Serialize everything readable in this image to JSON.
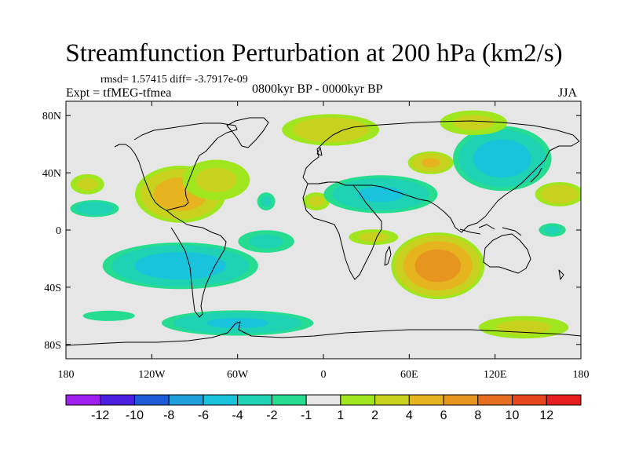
{
  "title": "Streamfunction Perturbation at 200 hPa (km2/s)",
  "stats": "rmsd= 1.57415 diff= -3.7917e-09",
  "experiment": "Expt = tfMEG-tfmea",
  "period": "0800kyr BP - 0000kyr BP",
  "season": "JJA",
  "colors": {
    "background_land": "#e6e6e6",
    "coastline": "#000000"
  },
  "map": {
    "projection": "cylindrical-equidistant",
    "lon_range": [
      -180,
      180
    ],
    "lat_range": [
      -90,
      90
    ],
    "lon_ticks": [
      {
        "value": -180,
        "label": "180"
      },
      {
        "value": -120,
        "label": "120W"
      },
      {
        "value": -60,
        "label": "60W"
      },
      {
        "value": 0,
        "label": "0"
      },
      {
        "value": 60,
        "label": "60E"
      },
      {
        "value": 120,
        "label": "120E"
      },
      {
        "value": 180,
        "label": "180"
      }
    ],
    "lat_ticks": [
      {
        "value": 80,
        "label": "80N"
      },
      {
        "value": 40,
        "label": "40N"
      },
      {
        "value": 0,
        "label": "0"
      },
      {
        "value": -40,
        "label": "40S"
      },
      {
        "value": -80,
        "label": "80S"
      }
    ],
    "anomalies": [
      {
        "lon": -100,
        "lat": 25,
        "value": 5,
        "rlon": 35,
        "rlat": 22
      },
      {
        "lon": -75,
        "lat": 35,
        "value": 2,
        "rlon": 30,
        "rlat": 18
      },
      {
        "lon": -160,
        "lat": 15,
        "value": -3,
        "rlon": 20,
        "rlat": 7
      },
      {
        "lon": -165,
        "lat": 32,
        "value": 2,
        "rlon": 15,
        "rlat": 9
      },
      {
        "lon": -40,
        "lat": 20,
        "value": -2,
        "rlon": 8,
        "rlat": 8
      },
      {
        "lon": -5,
        "lat": 20,
        "value": 2,
        "rlon": 12,
        "rlat": 8
      },
      {
        "lon": 5,
        "lat": 70,
        "value": 3,
        "rlon": 40,
        "rlat": 13
      },
      {
        "lon": 40,
        "lat": 25,
        "value": -4,
        "rlon": 45,
        "rlat": 15
      },
      {
        "lon": 75,
        "lat": 47,
        "value": 4,
        "rlon": 18,
        "rlat": 9
      },
      {
        "lon": 125,
        "lat": 50,
        "value": -5,
        "rlon": 38,
        "rlat": 25
      },
      {
        "lon": 105,
        "lat": 75,
        "value": 2,
        "rlon": 30,
        "rlat": 11
      },
      {
        "lon": 165,
        "lat": 25,
        "value": 3,
        "rlon": 20,
        "rlat": 10
      },
      {
        "lon": 35,
        "lat": -5,
        "value": 2,
        "rlon": 22,
        "rlat": 7
      },
      {
        "lon": 80,
        "lat": -25,
        "value": 7,
        "rlon": 35,
        "rlat": 25
      },
      {
        "lon": -100,
        "lat": -25,
        "value": -5,
        "rlon": 60,
        "rlat": 18
      },
      {
        "lon": -40,
        "lat": -8,
        "value": -2,
        "rlon": 25,
        "rlat": 10
      },
      {
        "lon": -60,
        "lat": -65,
        "value": -4,
        "rlon": 60,
        "rlat": 10
      },
      {
        "lon": -150,
        "lat": -60,
        "value": -1.5,
        "rlon": 25,
        "rlat": 5
      },
      {
        "lon": 140,
        "lat": -68,
        "value": 2,
        "rlon": 40,
        "rlat": 10
      },
      {
        "lon": 160,
        "lat": 0,
        "value": -2,
        "rlon": 12,
        "rlat": 6
      }
    ]
  },
  "colorbar": {
    "labels": [
      "-12",
      "-10",
      "-8",
      "-6",
      "-4",
      "-2",
      "-1",
      "1",
      "2",
      "4",
      "6",
      "8",
      "10",
      "12"
    ],
    "colors": [
      "#a020f0",
      "#4a1fe0",
      "#1e5bd8",
      "#1ea0dc",
      "#19c3dc",
      "#1fd2b4",
      "#25dc91",
      "#e6e6e6",
      "#a0e61e",
      "#c8d21e",
      "#e6b41e",
      "#e6961e",
      "#e66e1e",
      "#e6461e",
      "#e61e1e"
    ]
  }
}
